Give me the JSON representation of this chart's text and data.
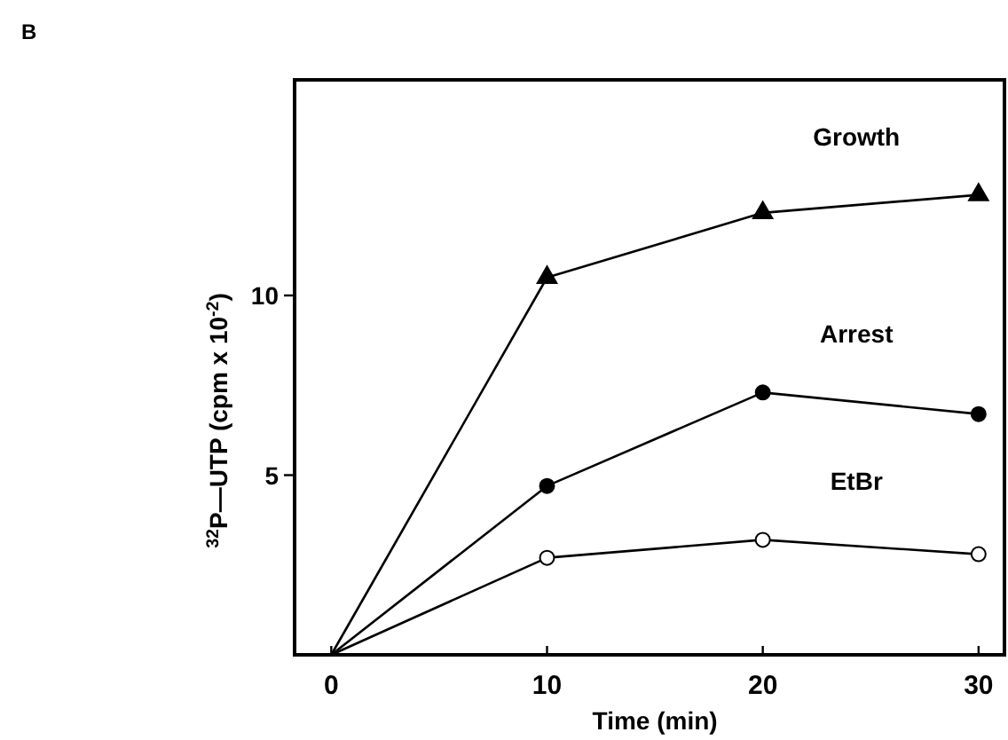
{
  "chart_data": {
    "type": "line",
    "xlabel": "Time (min)",
    "ylabel": "$^{32}$P—UTP (cpm x 10$^{-2}$)",
    "annotations": [
      "B"
    ],
    "xlim": [
      -1.7,
      31.2
    ],
    "xticks": [
      0,
      10,
      20,
      30
    ],
    "ylim": [
      0,
      16
    ],
    "yticks": [
      5,
      10
    ],
    "grid": false,
    "line_style": "solid",
    "series": [
      {
        "name": "Growth",
        "color": "#000000",
        "marker": "triangle",
        "colors": [
          null,
          "#000000",
          "#000000",
          "#000000"
        ],
        "x": [
          0,
          10,
          20,
          30
        ],
        "values": [
          0,
          10.5,
          12.3,
          12.8
        ]
      },
      {
        "name": "Arrest",
        "color": "#000000",
        "marker": "circle",
        "colors": [
          null,
          "#000000",
          "#000000",
          "#000000"
        ],
        "x": [
          0,
          10,
          20,
          30
        ],
        "values": [
          0,
          4.7,
          7.3,
          6.7
        ]
      },
      {
        "name": "EtBr",
        "color": "#000000",
        "marker": "circle",
        "colors": [
          null,
          "#ffffff",
          "#ffffff",
          "#ffffff"
        ],
        "x": [
          0,
          10,
          20,
          30
        ],
        "values": [
          0,
          2.7,
          3.2,
          2.8
        ]
      }
    ]
  }
}
